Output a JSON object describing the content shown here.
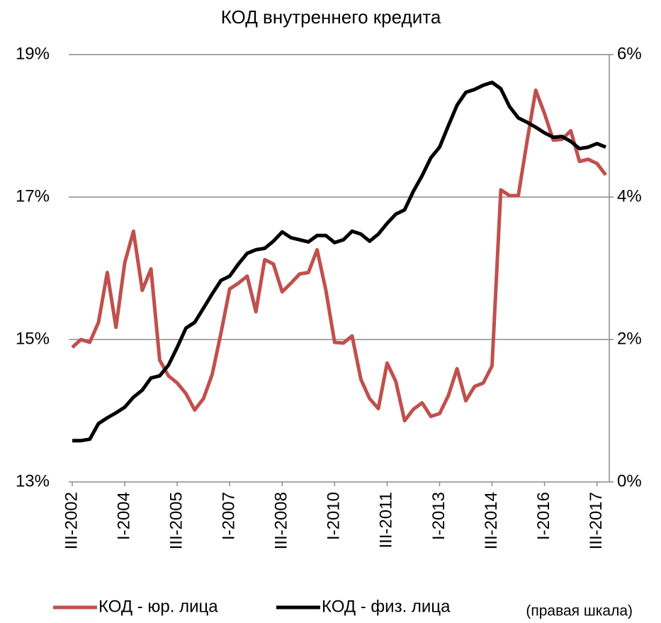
{
  "chart_data": {
    "type": "line",
    "title": "КОД внутреннего кредита",
    "categories": [
      "III-2002",
      null,
      null,
      null,
      null,
      null,
      "I-2004",
      null,
      null,
      null,
      null,
      null,
      "III-2005",
      null,
      null,
      null,
      null,
      null,
      "I-2007",
      null,
      null,
      null,
      null,
      null,
      "III-2008",
      null,
      null,
      null,
      null,
      null,
      "I-2010",
      null,
      null,
      null,
      null,
      null,
      "III-2011",
      null,
      null,
      null,
      null,
      null,
      "I-2013",
      null,
      null,
      null,
      null,
      null,
      "III-2014",
      null,
      null,
      null,
      null,
      null,
      "I-2016",
      null,
      null,
      null,
      null,
      null,
      "III-2017",
      null
    ],
    "series": [
      {
        "name": "КОД - юр. лица",
        "color": "#c0504d",
        "values": [
          14.89,
          15.0,
          14.96,
          15.24,
          15.94,
          15.17,
          16.08,
          16.52,
          15.69,
          15.99,
          14.71,
          14.49,
          14.39,
          14.24,
          14.01,
          14.17,
          14.51,
          15.09,
          15.71,
          15.79,
          15.89,
          15.39,
          16.12,
          16.06,
          15.67,
          15.79,
          15.92,
          15.94,
          16.26,
          15.69,
          14.96,
          14.95,
          15.05,
          14.44,
          14.17,
          14.03,
          14.67,
          14.41,
          13.86,
          14.02,
          14.11,
          13.92,
          13.96,
          14.21,
          14.59,
          14.14,
          14.34,
          14.39,
          14.63,
          17.1,
          17.02,
          17.02,
          17.78,
          18.5,
          18.17,
          17.8,
          17.81,
          17.93,
          17.5,
          17.53,
          17.47,
          17.31
        ]
      },
      {
        "name": "КОД - физ. лица",
        "color": "#000000",
        "axis": "y2",
        "values": [
          0.58,
          0.58,
          0.6,
          0.82,
          0.9,
          0.97,
          1.05,
          1.19,
          1.29,
          1.46,
          1.49,
          1.64,
          1.89,
          2.16,
          2.24,
          2.44,
          2.64,
          2.83,
          2.89,
          3.06,
          3.21,
          3.26,
          3.28,
          3.38,
          3.51,
          3.43,
          3.4,
          3.37,
          3.46,
          3.46,
          3.36,
          3.4,
          3.52,
          3.48,
          3.38,
          3.48,
          3.63,
          3.76,
          3.82,
          4.08,
          4.3,
          4.55,
          4.7,
          5.0,
          5.29,
          5.47,
          5.51,
          5.57,
          5.61,
          5.52,
          5.27,
          5.11,
          5.05,
          4.98,
          4.9,
          4.84,
          4.85,
          4.78,
          4.68,
          4.7,
          4.75,
          4.7
        ]
      }
    ],
    "legend_note": "(правая шкала)",
    "ylim": [
      13,
      19
    ],
    "yticks": [
      {
        "value": 13,
        "label": "13%"
      },
      {
        "value": 15,
        "label": "15%"
      },
      {
        "value": 17,
        "label": "17%"
      },
      {
        "value": 19,
        "label": "19%"
      }
    ],
    "y2lim": [
      0,
      6
    ],
    "y2ticks": [
      {
        "value": 0,
        "label": "0%"
      },
      {
        "value": 2,
        "label": "2%"
      },
      {
        "value": 4,
        "label": "4%"
      },
      {
        "value": 6,
        "label": "6%"
      }
    ],
    "grid": true,
    "legend": "bottom"
  }
}
